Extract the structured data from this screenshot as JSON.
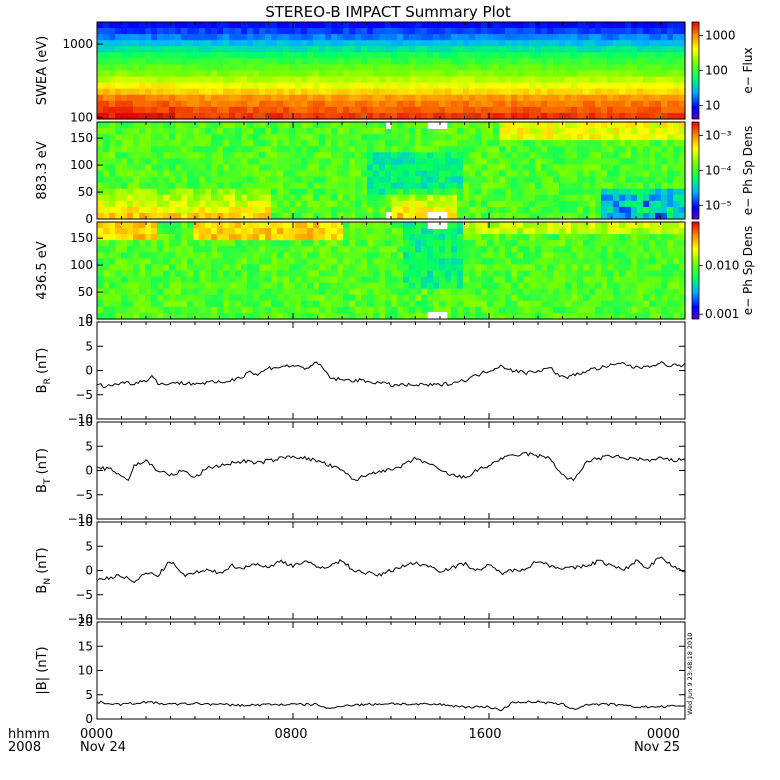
{
  "title": "STEREO-B IMPACT Summary Plot",
  "timestamp": "Wed Jun  9 23:48:18 2010",
  "time_axis": {
    "row1_labels": [
      "hhmm",
      "0000",
      "0800",
      "1600",
      "0000"
    ],
    "row2_labels": [
      "2008",
      "Nov 24",
      "",
      "",
      "Nov 25"
    ],
    "tick_hours": [
      0,
      8,
      16,
      24
    ]
  },
  "colors": {
    "line": "#000000",
    "spectrogram_scale": [
      "#5a00c8",
      "#0000ff",
      "#00b4ff",
      "#00ff64",
      "#78ff00",
      "#ffff00",
      "#ff8c00",
      "#e60000"
    ]
  },
  "chart_data": [
    {
      "type": "heatmap",
      "ylabel": "SWEA (eV)",
      "y_scale": "log",
      "ylim": [
        95,
        2000
      ],
      "y_ticks": [
        "1000",
        "100"
      ],
      "colorbar": {
        "label": "e−  Flux",
        "ticks": [
          "1000",
          "100",
          "10"
        ],
        "scale": "log",
        "range": [
          3,
          3000
        ]
      },
      "energy_profile": [
        {
          "energy": 100,
          "level": 0.95
        },
        {
          "energy": 180,
          "level": 0.85
        },
        {
          "energy": 250,
          "level": 0.72
        },
        {
          "energy": 400,
          "level": 0.58
        },
        {
          "energy": 700,
          "level": 0.45
        },
        {
          "energy": 1200,
          "level": 0.25
        },
        {
          "energy": 2000,
          "level": 0.12
        }
      ]
    },
    {
      "type": "heatmap",
      "ylabel": "883.3 eV",
      "ylim": [
        0,
        180
      ],
      "y_ticks": [
        "150",
        "100",
        "50",
        "0"
      ],
      "colorbar": {
        "label": "e−  Ph Sp Dens",
        "ticks": [
          "10⁻³",
          "10⁻⁴",
          "10⁻⁵"
        ],
        "scale": "log"
      },
      "data_gaps_hours": [
        [
          11.8,
          12.0
        ],
        [
          13.5,
          14.3
        ]
      ]
    },
    {
      "type": "heatmap",
      "ylabel": "436.5 eV",
      "ylim": [
        0,
        180
      ],
      "y_ticks": [
        "150",
        "100",
        "50",
        "0"
      ],
      "colorbar": {
        "label": "e−  Ph Sp Dens",
        "ticks": [
          "0.010",
          "0.001"
        ],
        "scale": "log"
      },
      "data_gaps_hours": [
        [
          13.5,
          14.3
        ]
      ]
    },
    {
      "type": "line",
      "ylabel": "B",
      "ylabel_sub": "R",
      "ylabel_unit": " (nT)",
      "ylim": [
        -10,
        10
      ],
      "y_ticks": [
        "10",
        "5",
        "0",
        "−5",
        "−10"
      ],
      "x": [
        0,
        0.5,
        1,
        1.5,
        2,
        2.3,
        2.5,
        3,
        3.5,
        4,
        4.5,
        5,
        5.5,
        6,
        6.2,
        6.5,
        7,
        7.5,
        8,
        8.5,
        9,
        9.3,
        9.5,
        10,
        10.5,
        11,
        11.5,
        12,
        12.5,
        13,
        13.5,
        14,
        14.5,
        15,
        15.5,
        16,
        16.5,
        17,
        17.5,
        18,
        18.5,
        19,
        19.5,
        20,
        20.5,
        21,
        21.5,
        22,
        22.5,
        23,
        23.5,
        24
      ],
      "y": [
        -3,
        -3.2,
        -2.5,
        -2.6,
        -2,
        -1,
        -3,
        -2.5,
        -2.6,
        -2.7,
        -2.5,
        -2.5,
        -2,
        -1,
        0,
        -1,
        0.5,
        0.8,
        1,
        0.5,
        1.5,
        0,
        -1.5,
        -2,
        -2,
        -2.2,
        -2.5,
        -3,
        -3,
        -3,
        -3,
        -3,
        -2.5,
        -2,
        -1,
        0,
        1,
        0,
        -0.5,
        0,
        0.5,
        -1.5,
        -1,
        0,
        0.5,
        1,
        1.5,
        0.5,
        1,
        1.5,
        1,
        1.2
      ]
    },
    {
      "type": "line",
      "ylabel": "B",
      "ylabel_sub": "T",
      "ylabel_unit": " (nT)",
      "ylim": [
        -10,
        10
      ],
      "y_ticks": [
        "10",
        "5",
        "0",
        "−5",
        "−10"
      ],
      "x": [
        0,
        0.5,
        1,
        1.3,
        1.5,
        2,
        2.5,
        3,
        3.5,
        4,
        4.5,
        5,
        5.5,
        6,
        6.5,
        7,
        7.5,
        8,
        8.5,
        9,
        9.5,
        10,
        10.5,
        11,
        11.5,
        12,
        12.5,
        13,
        13.5,
        14,
        14.5,
        15,
        15.5,
        16,
        16.5,
        17,
        17.5,
        18,
        18.5,
        19,
        19.2,
        19.5,
        20,
        20.5,
        21,
        21.5,
        22,
        22.5,
        23,
        23.5,
        24
      ],
      "y": [
        0.5,
        0.3,
        -1,
        -2,
        1,
        2,
        0,
        -1,
        0,
        -1.5,
        0.5,
        1,
        1.5,
        2,
        1.5,
        2,
        2.5,
        3,
        2.5,
        2,
        1,
        0,
        -2,
        -1,
        0,
        0,
        1,
        2.5,
        1.5,
        0,
        -1,
        -1.5,
        0,
        1,
        2.5,
        3,
        3.5,
        3,
        2.5,
        -1,
        -1.5,
        -2,
        2,
        2.5,
        3,
        2.5,
        2.5,
        2,
        2.5,
        2,
        2.5
      ]
    },
    {
      "type": "line",
      "ylabel": "B",
      "ylabel_sub": "N",
      "ylabel_unit": " (nT)",
      "ylim": [
        -10,
        10
      ],
      "y_ticks": [
        "10",
        "5",
        "0",
        "−5",
        "−10"
      ],
      "x": [
        0,
        0.5,
        1,
        1.5,
        2,
        2.5,
        3,
        3.5,
        4,
        4.5,
        5,
        5.5,
        6,
        6.5,
        7,
        7.5,
        8,
        8.5,
        9,
        9.5,
        10,
        10.5,
        11,
        11.5,
        12,
        12.5,
        13,
        13.5,
        14,
        14.5,
        15,
        15.5,
        16,
        16.5,
        17,
        17.5,
        18,
        18.5,
        19,
        19.5,
        20,
        20.5,
        21,
        21.5,
        22,
        22.5,
        23,
        23.5,
        24
      ],
      "y": [
        -2,
        -1.5,
        -1,
        -2.5,
        -0.5,
        -1,
        2,
        -1,
        -0.5,
        0,
        -0.5,
        1,
        0.5,
        1.5,
        0.5,
        2,
        1,
        2,
        0.5,
        1,
        2,
        0,
        -0.5,
        -1,
        0,
        1,
        1.5,
        1,
        0,
        0.5,
        1.5,
        0,
        1,
        -0.5,
        0,
        0.5,
        2,
        1,
        0.5,
        0.5,
        1,
        2,
        1,
        0,
        2,
        0.5,
        3,
        1,
        -0.5
      ]
    },
    {
      "type": "line",
      "ylabel": "|B|",
      "ylabel_unit": " (nT)",
      "ylim": [
        0,
        20
      ],
      "y_ticks": [
        "20",
        "15",
        "10",
        "5",
        "0"
      ],
      "x": [
        0,
        1,
        2,
        3,
        4,
        5,
        6,
        7,
        8,
        9,
        9.5,
        10,
        11,
        12,
        13,
        14,
        15,
        16,
        16.5,
        17,
        18,
        19,
        19.5,
        20,
        21,
        22,
        23,
        24
      ],
      "y": [
        3.5,
        3,
        3.5,
        3,
        3.2,
        3,
        2.8,
        3,
        3,
        3,
        2,
        2.8,
        3,
        3.2,
        3,
        3,
        2.5,
        2.5,
        1.8,
        3.5,
        3.5,
        3,
        2,
        3,
        3,
        2.5,
        2.5,
        2.8
      ]
    }
  ]
}
